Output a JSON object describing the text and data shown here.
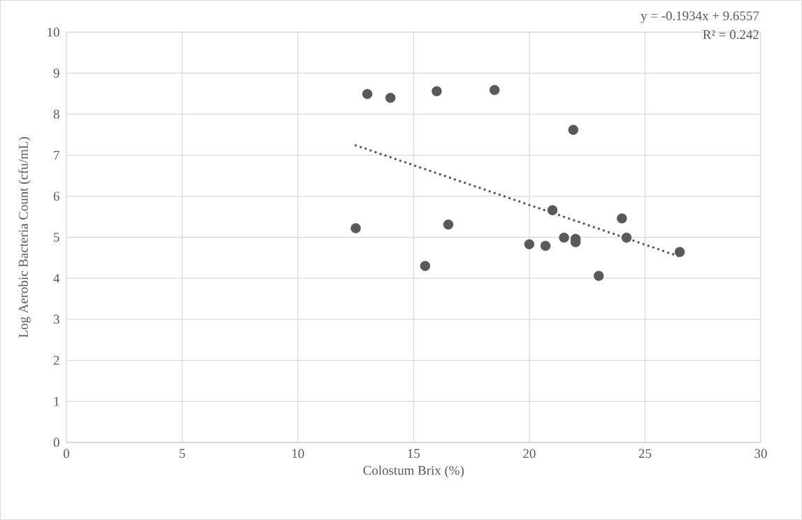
{
  "chart_data": {
    "type": "scatter",
    "xlabel": "Colostum Brix (%)",
    "ylabel": "Log Aerobic Bacteria Count (cfu/mL)",
    "xlim": [
      0,
      30
    ],
    "xticks": [
      0,
      5,
      10,
      15,
      20,
      25,
      30
    ],
    "ylim": [
      0,
      10
    ],
    "yticks": [
      0,
      1,
      2,
      3,
      4,
      5,
      6,
      7,
      8,
      9,
      10
    ],
    "grid": true,
    "marker": "circle",
    "annotations": [
      "y = -0.1934x + 9.6557",
      "R² = 0.242"
    ],
    "series": [
      {
        "color": "#595959",
        "x": [
          13.0,
          14.0,
          16.0,
          18.5,
          12.5,
          16.5,
          15.5,
          21.9,
          21.0,
          24.0,
          20.0,
          20.7,
          21.5,
          22.0,
          22.0,
          24.2,
          26.5,
          23.0
        ],
        "values": [
          8.49,
          8.4,
          8.56,
          8.59,
          5.22,
          5.31,
          4.3,
          7.62,
          5.66,
          5.46,
          4.83,
          4.79,
          4.99,
          4.96,
          4.88,
          4.99,
          4.64,
          4.06
        ]
      },
      {
        "type": "line",
        "color": "#595959",
        "marker": "none",
        "line_style": "dotted",
        "x": [
          12.5,
          26.5
        ],
        "values": [
          7.24,
          4.53
        ]
      }
    ]
  }
}
